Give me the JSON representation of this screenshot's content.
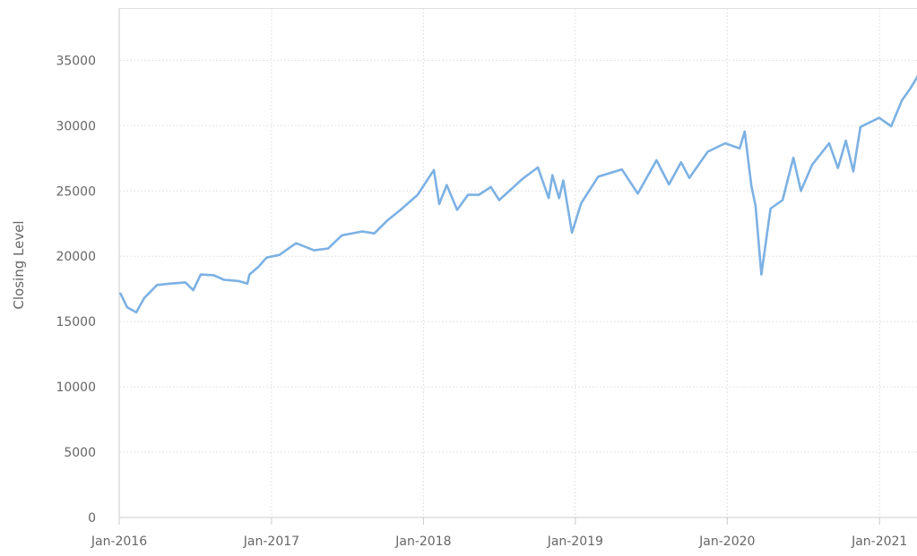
{
  "chart_data": {
    "type": "line",
    "title": "",
    "xlabel": "",
    "ylabel": "Closing Level",
    "ylim": [
      0,
      39000
    ],
    "xlim": [
      "2016-01",
      "2021-04"
    ],
    "yticks": [
      "0",
      "5000",
      "10000",
      "15000",
      "20000",
      "25000",
      "30000",
      "35000"
    ],
    "xticks": [
      "Jan-2016",
      "Jan-2017",
      "Jan-2018",
      "Jan-2019",
      "Jan-2020",
      "Jan-2021"
    ],
    "grid": true,
    "legend": "none",
    "line_color": "#7cb1e3",
    "series": [
      {
        "x": [
          "2016-01-04",
          "2016-01-20",
          "2016-02-11",
          "2016-03-01",
          "2016-04-01",
          "2016-05-02",
          "2016-06-08",
          "2016-06-27",
          "2016-07-15",
          "2016-08-15",
          "2016-09-09",
          "2016-10-14",
          "2016-11-04",
          "2016-11-09",
          "2016-12-01",
          "2016-12-20",
          "2017-01-20",
          "2017-03-01",
          "2017-04-13",
          "2017-05-17",
          "2017-06-19",
          "2017-08-07",
          "2017-09-05",
          "2017-10-05",
          "2017-11-07",
          "2017-12-18",
          "2018-01-26",
          "2018-02-08",
          "2018-02-26",
          "2018-03-23",
          "2018-04-18",
          "2018-05-14",
          "2018-06-12",
          "2018-07-02",
          "2018-08-28",
          "2018-10-03",
          "2018-10-29",
          "2018-11-07",
          "2018-11-23",
          "2018-12-03",
          "2018-12-24",
          "2019-01-15",
          "2019-02-25",
          "2019-04-23",
          "2019-05-31",
          "2019-07-15",
          "2019-08-14",
          "2019-09-12",
          "2019-10-02",
          "2019-11-15",
          "2019-12-27",
          "2020-01-31",
          "2020-02-12",
          "2020-02-28",
          "2020-03-09",
          "2020-03-23",
          "2020-04-14",
          "2020-05-13",
          "2020-06-08",
          "2020-06-26",
          "2020-07-23",
          "2020-09-02",
          "2020-09-23",
          "2020-10-12",
          "2020-10-30",
          "2020-11-16",
          "2020-12-31",
          "2021-01-29",
          "2021-02-24",
          "2021-03-16",
          "2021-04-05"
        ],
        "values": [
          17150,
          16100,
          15700,
          16800,
          17800,
          17900,
          18000,
          17400,
          18600,
          18550,
          18200,
          18100,
          17900,
          18600,
          19200,
          19900,
          20100,
          21000,
          20450,
          20600,
          21600,
          21900,
          21750,
          22700,
          23550,
          24700,
          26600,
          24000,
          25450,
          23550,
          24700,
          24700,
          25300,
          24300,
          25950,
          26800,
          24450,
          26200,
          24450,
          25800,
          21800,
          24050,
          26100,
          26650,
          24800,
          27350,
          25500,
          27200,
          26000,
          28000,
          28650,
          28250,
          29550,
          25400,
          23850,
          18600,
          23650,
          24300,
          27550,
          25000,
          27000,
          28650,
          26750,
          28850,
          26500,
          29900,
          30600,
          29950,
          31950,
          32850,
          33900
        ]
      }
    ]
  }
}
